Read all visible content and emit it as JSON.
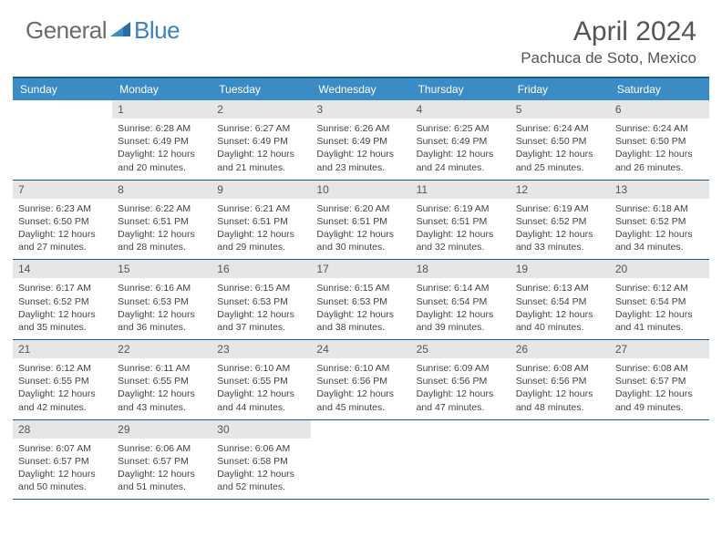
{
  "logo": {
    "text_general": "General",
    "text_blue": "Blue"
  },
  "title": "April 2024",
  "location": "Pachuca de Soto, Mexico",
  "colors": {
    "header_bg": "#3b8bc4",
    "divider": "#1a5a8a",
    "date_bg": "#e6e6e6",
    "text": "#444444",
    "title_text": "#555555"
  },
  "day_names": [
    "Sunday",
    "Monday",
    "Tuesday",
    "Wednesday",
    "Thursday",
    "Friday",
    "Saturday"
  ],
  "weeks": [
    [
      null,
      {
        "d": "1",
        "sr": "6:28 AM",
        "ss": "6:49 PM",
        "dl": "12 hours and 20 minutes."
      },
      {
        "d": "2",
        "sr": "6:27 AM",
        "ss": "6:49 PM",
        "dl": "12 hours and 21 minutes."
      },
      {
        "d": "3",
        "sr": "6:26 AM",
        "ss": "6:49 PM",
        "dl": "12 hours and 23 minutes."
      },
      {
        "d": "4",
        "sr": "6:25 AM",
        "ss": "6:49 PM",
        "dl": "12 hours and 24 minutes."
      },
      {
        "d": "5",
        "sr": "6:24 AM",
        "ss": "6:50 PM",
        "dl": "12 hours and 25 minutes."
      },
      {
        "d": "6",
        "sr": "6:24 AM",
        "ss": "6:50 PM",
        "dl": "12 hours and 26 minutes."
      }
    ],
    [
      {
        "d": "7",
        "sr": "6:23 AM",
        "ss": "6:50 PM",
        "dl": "12 hours and 27 minutes."
      },
      {
        "d": "8",
        "sr": "6:22 AM",
        "ss": "6:51 PM",
        "dl": "12 hours and 28 minutes."
      },
      {
        "d": "9",
        "sr": "6:21 AM",
        "ss": "6:51 PM",
        "dl": "12 hours and 29 minutes."
      },
      {
        "d": "10",
        "sr": "6:20 AM",
        "ss": "6:51 PM",
        "dl": "12 hours and 30 minutes."
      },
      {
        "d": "11",
        "sr": "6:19 AM",
        "ss": "6:51 PM",
        "dl": "12 hours and 32 minutes."
      },
      {
        "d": "12",
        "sr": "6:19 AM",
        "ss": "6:52 PM",
        "dl": "12 hours and 33 minutes."
      },
      {
        "d": "13",
        "sr": "6:18 AM",
        "ss": "6:52 PM",
        "dl": "12 hours and 34 minutes."
      }
    ],
    [
      {
        "d": "14",
        "sr": "6:17 AM",
        "ss": "6:52 PM",
        "dl": "12 hours and 35 minutes."
      },
      {
        "d": "15",
        "sr": "6:16 AM",
        "ss": "6:53 PM",
        "dl": "12 hours and 36 minutes."
      },
      {
        "d": "16",
        "sr": "6:15 AM",
        "ss": "6:53 PM",
        "dl": "12 hours and 37 minutes."
      },
      {
        "d": "17",
        "sr": "6:15 AM",
        "ss": "6:53 PM",
        "dl": "12 hours and 38 minutes."
      },
      {
        "d": "18",
        "sr": "6:14 AM",
        "ss": "6:54 PM",
        "dl": "12 hours and 39 minutes."
      },
      {
        "d": "19",
        "sr": "6:13 AM",
        "ss": "6:54 PM",
        "dl": "12 hours and 40 minutes."
      },
      {
        "d": "20",
        "sr": "6:12 AM",
        "ss": "6:54 PM",
        "dl": "12 hours and 41 minutes."
      }
    ],
    [
      {
        "d": "21",
        "sr": "6:12 AM",
        "ss": "6:55 PM",
        "dl": "12 hours and 42 minutes."
      },
      {
        "d": "22",
        "sr": "6:11 AM",
        "ss": "6:55 PM",
        "dl": "12 hours and 43 minutes."
      },
      {
        "d": "23",
        "sr": "6:10 AM",
        "ss": "6:55 PM",
        "dl": "12 hours and 44 minutes."
      },
      {
        "d": "24",
        "sr": "6:10 AM",
        "ss": "6:56 PM",
        "dl": "12 hours and 45 minutes."
      },
      {
        "d": "25",
        "sr": "6:09 AM",
        "ss": "6:56 PM",
        "dl": "12 hours and 47 minutes."
      },
      {
        "d": "26",
        "sr": "6:08 AM",
        "ss": "6:56 PM",
        "dl": "12 hours and 48 minutes."
      },
      {
        "d": "27",
        "sr": "6:08 AM",
        "ss": "6:57 PM",
        "dl": "12 hours and 49 minutes."
      }
    ],
    [
      {
        "d": "28",
        "sr": "6:07 AM",
        "ss": "6:57 PM",
        "dl": "12 hours and 50 minutes."
      },
      {
        "d": "29",
        "sr": "6:06 AM",
        "ss": "6:57 PM",
        "dl": "12 hours and 51 minutes."
      },
      {
        "d": "30",
        "sr": "6:06 AM",
        "ss": "6:58 PM",
        "dl": "12 hours and 52 minutes."
      },
      null,
      null,
      null,
      null
    ]
  ],
  "labels": {
    "sunrise": "Sunrise:",
    "sunset": "Sunset:",
    "daylight": "Daylight:"
  }
}
